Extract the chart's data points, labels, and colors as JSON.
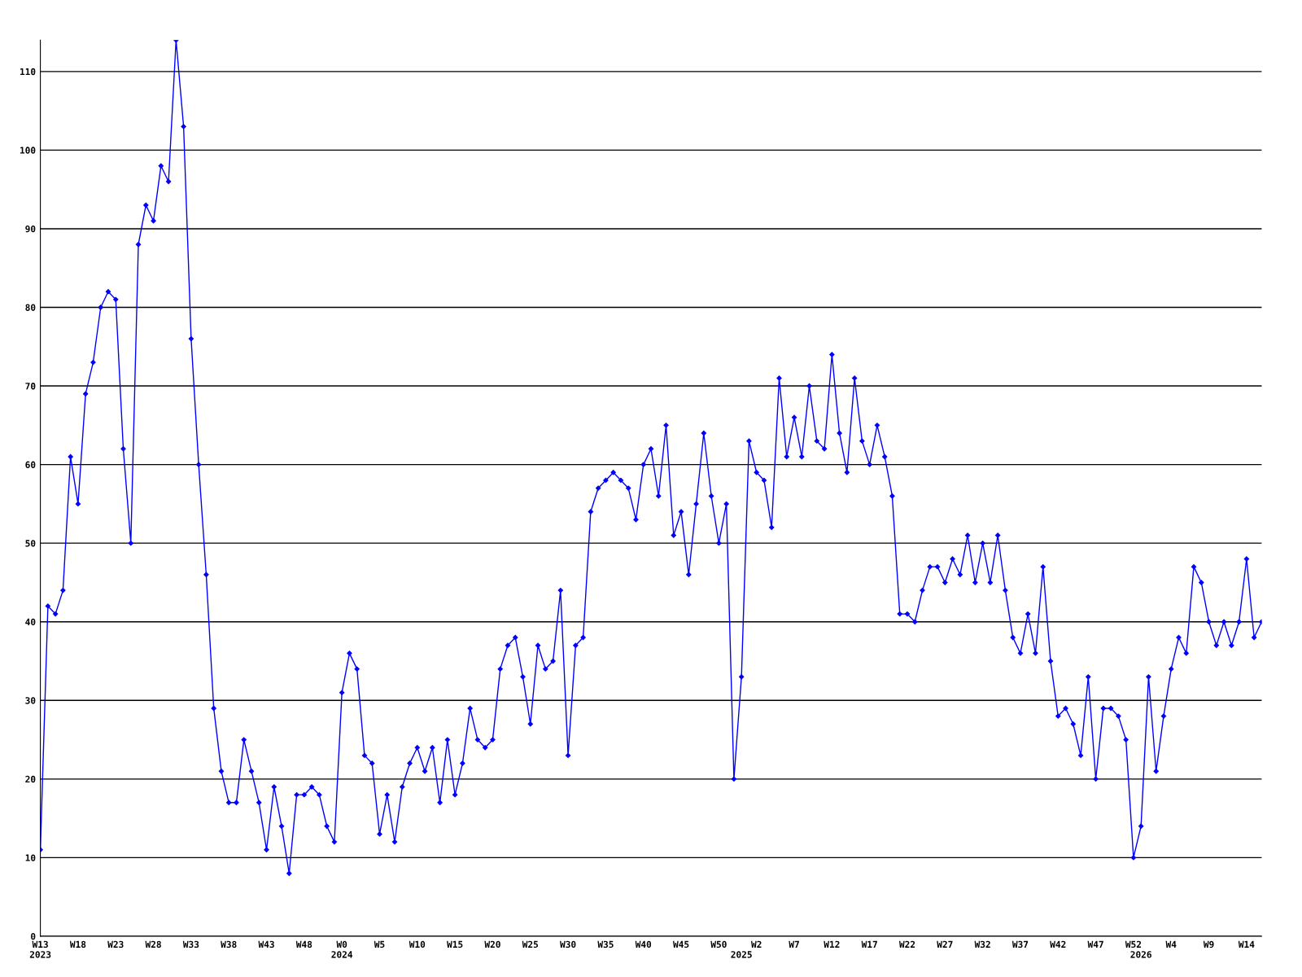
{
  "chart_data": {
    "type": "line",
    "categories": [
      "W13\n2023",
      null,
      null,
      null,
      null,
      "W18",
      null,
      null,
      null,
      null,
      "W23",
      null,
      null,
      null,
      null,
      "W28",
      null,
      null,
      null,
      null,
      "W33",
      null,
      null,
      null,
      null,
      "W38",
      null,
      null,
      null,
      null,
      "W43",
      null,
      null,
      null,
      null,
      "W48",
      null,
      null,
      null,
      null,
      "W0\n2024",
      null,
      null,
      null,
      null,
      "W5",
      null,
      null,
      null,
      null,
      "W10",
      null,
      null,
      null,
      null,
      "W15",
      null,
      null,
      null,
      null,
      "W20",
      null,
      null,
      null,
      null,
      "W25",
      null,
      null,
      null,
      null,
      "W30",
      null,
      null,
      null,
      null,
      "W35",
      null,
      null,
      null,
      null,
      "W40",
      null,
      null,
      null,
      null,
      "W45",
      null,
      null,
      null,
      null,
      "W50",
      null,
      null,
      "\n2025",
      null,
      "W2",
      null,
      null,
      null,
      null,
      "W7",
      null,
      null,
      null,
      null,
      "W12",
      null,
      null,
      null,
      null,
      "W17",
      null,
      null,
      null,
      null,
      "W22",
      null,
      null,
      null,
      null,
      "W27",
      null,
      null,
      null,
      null,
      "W32",
      null,
      null,
      null,
      null,
      "W37",
      null,
      null,
      null,
      null,
      "W42",
      null,
      null,
      null,
      null,
      "W47",
      null,
      null,
      null,
      null,
      "W52",
      "\n2026",
      null,
      null,
      null,
      "W4",
      null,
      null,
      null,
      null,
      "W9",
      null,
      null,
      null,
      null,
      "W14",
      null,
      null
    ],
    "series": [
      {
        "color": "#0000ff",
        "values": [
          11,
          42,
          41,
          44,
          61,
          55,
          69,
          73,
          80,
          82,
          81,
          62,
          50,
          88,
          93,
          91,
          98,
          96,
          114,
          103,
          76,
          60,
          46,
          29,
          21,
          17,
          17,
          25,
          21,
          17,
          11,
          19,
          14,
          8,
          18,
          18,
          19,
          18,
          14,
          12,
          31,
          36,
          34,
          23,
          22,
          13,
          18,
          12,
          19,
          22,
          24,
          21,
          24,
          17,
          25,
          18,
          22,
          29,
          25,
          24,
          25,
          34,
          37,
          38,
          33,
          27,
          37,
          34,
          35,
          44,
          23,
          37,
          38,
          54,
          57,
          58,
          59,
          58,
          57,
          53,
          60,
          62,
          56,
          65,
          51,
          54,
          46,
          55,
          64,
          56,
          50,
          55,
          20,
          33,
          63,
          59,
          58,
          52,
          71,
          61,
          66,
          61,
          70,
          63,
          62,
          74,
          64,
          59,
          71,
          63,
          60,
          65,
          61,
          56,
          41,
          41,
          40,
          44,
          47,
          47,
          45,
          48,
          46,
          51,
          45,
          50,
          45,
          51,
          44,
          38,
          36,
          41,
          36,
          47,
          35,
          28,
          29,
          27,
          23,
          33,
          20,
          29,
          29,
          28,
          25,
          10,
          14,
          33,
          21,
          28,
          34,
          38,
          36,
          47,
          45,
          40,
          37,
          40,
          37,
          40,
          48,
          38,
          40
        ]
      }
    ],
    "ylim": [
      0,
      114
    ],
    "yticks": [
      0,
      10,
      20,
      30,
      40,
      50,
      60,
      70,
      80,
      90,
      100,
      110
    ],
    "grid": "y",
    "marker": "diamond",
    "line_style": "solid"
  }
}
